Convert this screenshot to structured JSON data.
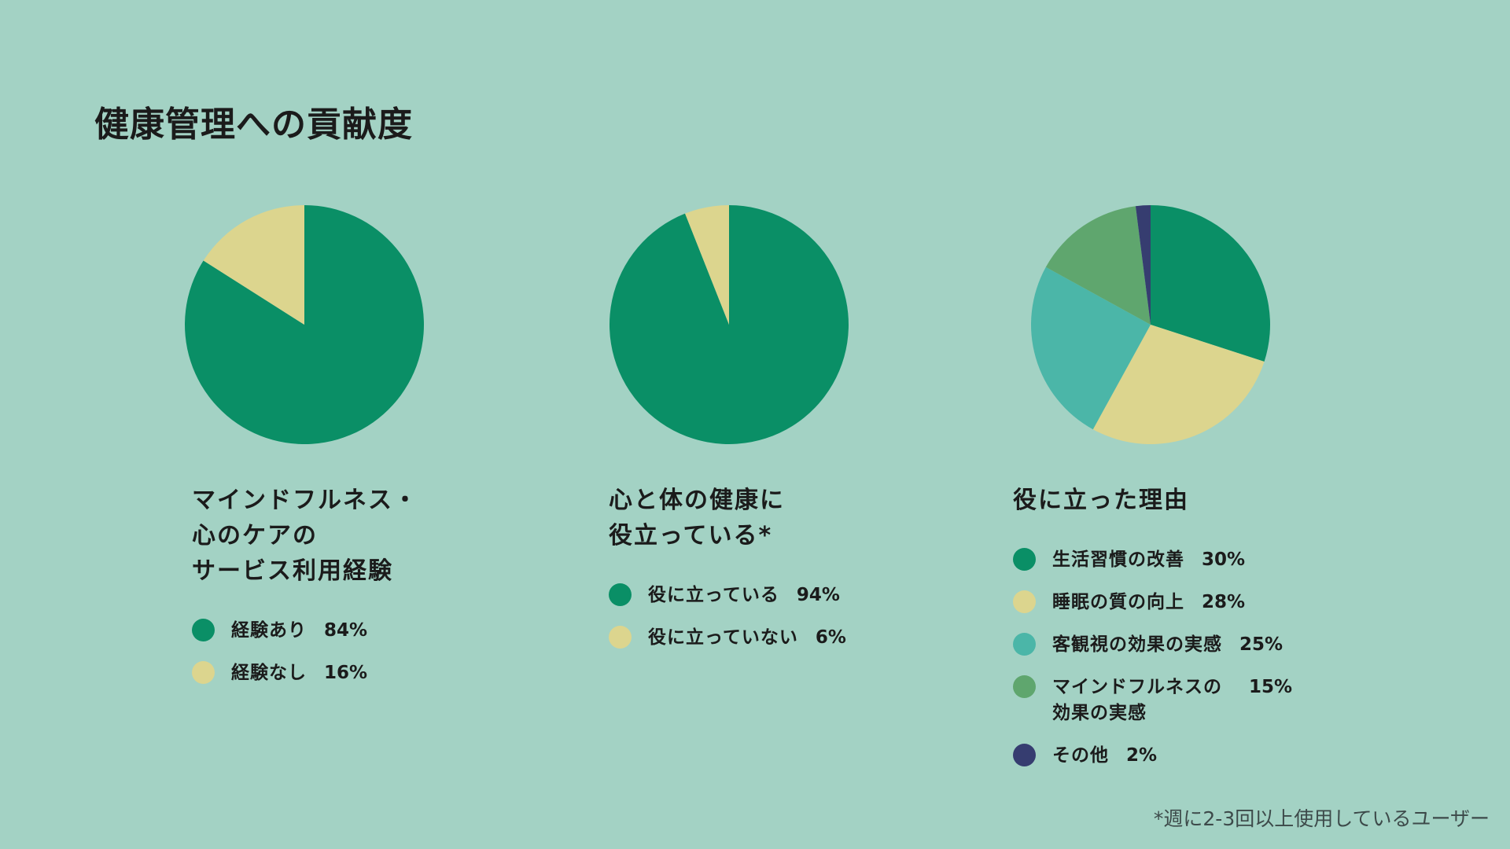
{
  "title": "健康管理への貢献度",
  "footnote": "*週に2-3回以上使用しているユーザー",
  "colors": {
    "background": "#a3d2c4",
    "green": "#0a8f66",
    "yellow": "#dcd58e",
    "teal": "#4bb6a8",
    "sage": "#5fa66e",
    "navy": "#363d70"
  },
  "chart_data": [
    {
      "type": "pie",
      "title": "マインドフルネス・\n心のケアの\nサービス利用経験",
      "slices": [
        {
          "label": "経験あり",
          "value": 84,
          "display": "84%",
          "color": "#0a8f66"
        },
        {
          "label": "経験なし",
          "value": 16,
          "display": "16%",
          "color": "#dcd58e"
        }
      ]
    },
    {
      "type": "pie",
      "title": "心と体の健康に\n役立っている*",
      "slices": [
        {
          "label": "役に立っている",
          "value": 94,
          "display": "94%",
          "color": "#0a8f66"
        },
        {
          "label": "役に立っていない",
          "value": 6,
          "display": "6%",
          "color": "#dcd58e"
        }
      ]
    },
    {
      "type": "pie",
      "title": "役に立った理由",
      "slices": [
        {
          "label": "生活習慣の改善",
          "value": 30,
          "display": "30%",
          "color": "#0a8f66"
        },
        {
          "label": "睡眠の質の向上",
          "value": 28,
          "display": "28%",
          "color": "#dcd58e"
        },
        {
          "label": "客観視の効果の実感",
          "value": 25,
          "display": "25%",
          "color": "#4bb6a8"
        },
        {
          "label": "マインドフルネスの\n効果の実感",
          "value": 15,
          "display": "15%",
          "color": "#5fa66e"
        },
        {
          "label": "その他",
          "value": 2,
          "display": "2%",
          "color": "#363d70"
        }
      ]
    }
  ]
}
